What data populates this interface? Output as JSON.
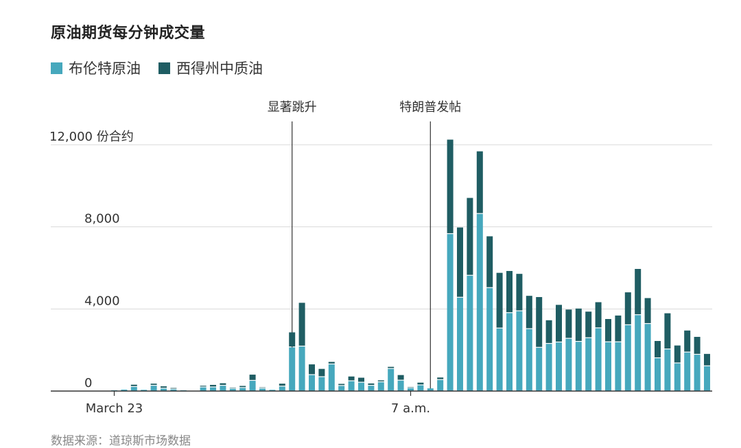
{
  "title": "原油期货每分钟成交量",
  "source": "数据来源：道琼斯市场数据",
  "legend": [
    {
      "label": "布伦特原油",
      "color": "#46a8bd"
    },
    {
      "label": "西得州中质油",
      "color": "#1f5d63"
    }
  ],
  "chart_data": {
    "type": "bar",
    "stacked": true,
    "y_unit_label": "12,000 份合约",
    "ylim": [
      0,
      12000
    ],
    "yticks": [
      {
        "value": 0,
        "label": "0"
      },
      {
        "value": 4000,
        "label": "4,000"
      },
      {
        "value": 8000,
        "label": "8,000"
      },
      {
        "value": 12000,
        "label": "12,000"
      }
    ],
    "xtick_labels": [
      {
        "bar_index": 0,
        "label": "March 23"
      },
      {
        "bar_index": 30,
        "label": "7 a.m."
      }
    ],
    "annotations": [
      {
        "bar_index": 18,
        "label": "显著跳升"
      },
      {
        "bar_index": 32,
        "label": "特朗普发帖"
      }
    ],
    "series": [
      {
        "name": "布伦特原油",
        "color": "#46a8bd",
        "values": [
          40,
          70,
          200,
          60,
          260,
          120,
          80,
          40,
          0,
          180,
          180,
          260,
          110,
          150,
          500,
          120,
          60,
          220,
          2130,
          2170,
          780,
          680,
          1300,
          250,
          480,
          410,
          260,
          430,
          1080,
          510,
          140,
          280,
          130,
          540,
          7650,
          4550,
          5620,
          8630,
          5020,
          3050,
          3800,
          3890,
          3020,
          2110,
          2300,
          2370,
          2550,
          2400,
          2580,
          3060,
          2380,
          2380,
          3210,
          3700,
          3270,
          1600,
          2030,
          1350,
          1880,
          1770,
          1210
        ]
      },
      {
        "name": "西得州中质油",
        "color": "#1f5d63",
        "values": [
          30,
          40,
          110,
          40,
          100,
          110,
          70,
          30,
          0,
          80,
          120,
          120,
          60,
          100,
          300,
          60,
          40,
          140,
          730,
          2130,
          520,
          400,
          120,
          100,
          230,
          240,
          110,
          90,
          100,
          270,
          60,
          130,
          40,
          120,
          4600,
          3420,
          3790,
          3050,
          2520,
          2710,
          2050,
          1820,
          1620,
          2470,
          1150,
          1830,
          1420,
          1620,
          1290,
          1270,
          1130,
          1300,
          1600,
          2250,
          1260,
          840,
          1760,
          870,
          1070,
          870,
          600
        ]
      }
    ]
  }
}
